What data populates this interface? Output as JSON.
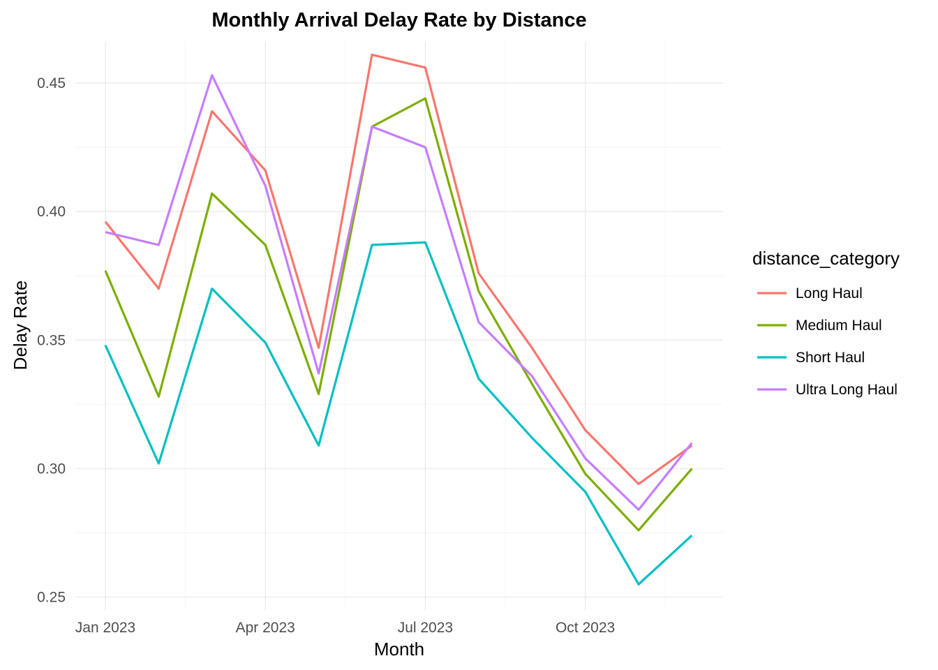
{
  "chart_data": {
    "type": "line",
    "title": "Monthly Arrival Delay Rate by Distance",
    "xlabel": "Month",
    "ylabel": "Delay Rate",
    "x": [
      "2023-01",
      "2023-02",
      "2023-03",
      "2023-04",
      "2023-05",
      "2023-06",
      "2023-07",
      "2023-08",
      "2023-09",
      "2023-10",
      "2023-11",
      "2023-12"
    ],
    "x_ticks": [
      {
        "month": "2023-01",
        "label": "Jan 2023"
      },
      {
        "month": "2023-04",
        "label": "Apr 2023"
      },
      {
        "month": "2023-07",
        "label": "Jul 2023"
      },
      {
        "month": "2023-10",
        "label": "Oct 2023"
      }
    ],
    "y_ticks": [
      0.25,
      0.3,
      0.35,
      0.4,
      0.45
    ],
    "y_tick_labels": [
      "0.25",
      "0.30",
      "0.35",
      "0.40",
      "0.45"
    ],
    "ylim": [
      0.245,
      0.466
    ],
    "grid": true,
    "legend": {
      "title": "distance_category",
      "position": "right"
    },
    "series": [
      {
        "name": "Long Haul",
        "color": "#F8766D",
        "values": [
          0.396,
          0.37,
          0.439,
          0.416,
          0.347,
          0.461,
          0.456,
          0.376,
          0.347,
          0.315,
          0.294,
          0.309
        ]
      },
      {
        "name": "Medium Haul",
        "color": "#7CAE00",
        "values": [
          0.377,
          0.328,
          0.407,
          0.387,
          0.329,
          0.433,
          0.444,
          0.369,
          0.333,
          0.298,
          0.276,
          0.3
        ]
      },
      {
        "name": "Short Haul",
        "color": "#00BFC4",
        "values": [
          0.348,
          0.302,
          0.37,
          0.349,
          0.309,
          0.387,
          0.388,
          0.335,
          0.312,
          0.291,
          0.255,
          0.274
        ]
      },
      {
        "name": "Ultra Long Haul",
        "color": "#C77CFF",
        "values": [
          0.392,
          0.387,
          0.453,
          0.41,
          0.337,
          0.433,
          0.425,
          0.357,
          0.336,
          0.304,
          0.284,
          0.31
        ]
      }
    ]
  }
}
